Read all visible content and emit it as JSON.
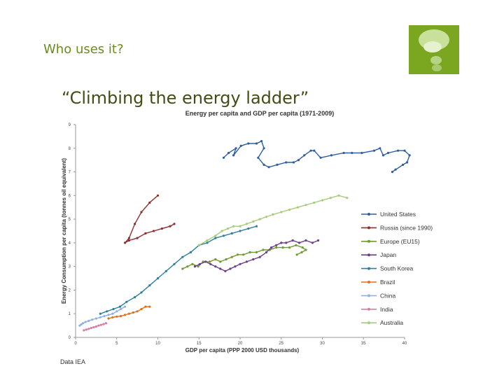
{
  "slide": {
    "title": "Who uses it?",
    "headline": "“Climbing the energy ladder”",
    "source": "Data  IEA"
  },
  "logo": {
    "icon": "thought-bubble-icon",
    "color": "#7aa71f"
  },
  "chart_data": {
    "type": "line",
    "title": "Energy per capita and GDP per capita (1971-2009)",
    "xlabel": "GDP per capita (PPP 2000 USD thousands)",
    "ylabel": "Energy Consumption per capita (tonnes oil equivalent)",
    "xlim": [
      0,
      40
    ],
    "ylim": [
      0,
      9
    ],
    "xticks": [
      0,
      5,
      10,
      15,
      20,
      25,
      30,
      35,
      40
    ],
    "yticks": [
      0,
      1,
      2,
      3,
      4,
      5,
      6,
      7,
      8,
      9
    ],
    "grid": false,
    "legend_position": "right",
    "series": [
      {
        "name": "United States",
        "color": "#2f5f9e",
        "points": [
          [
            18.0,
            7.6
          ],
          [
            18.6,
            7.8
          ],
          [
            19.5,
            8.0
          ],
          [
            19.2,
            7.7
          ],
          [
            20.1,
            8.1
          ],
          [
            21.0,
            8.2
          ],
          [
            22.0,
            8.2
          ],
          [
            22.6,
            8.3
          ],
          [
            22.9,
            8.0
          ],
          [
            22.2,
            7.6
          ],
          [
            22.9,
            7.3
          ],
          [
            23.5,
            7.2
          ],
          [
            24.5,
            7.3
          ],
          [
            25.6,
            7.4
          ],
          [
            26.5,
            7.4
          ],
          [
            27.1,
            7.5
          ],
          [
            27.8,
            7.7
          ],
          [
            28.6,
            7.9
          ],
          [
            29.0,
            7.9
          ],
          [
            29.8,
            7.6
          ],
          [
            31.1,
            7.7
          ],
          [
            32.6,
            7.8
          ],
          [
            33.6,
            7.8
          ],
          [
            34.8,
            7.8
          ],
          [
            36.3,
            7.9
          ],
          [
            37.0,
            8.0
          ],
          [
            37.4,
            7.7
          ],
          [
            38.0,
            7.8
          ],
          [
            39.2,
            7.9
          ],
          [
            40.0,
            7.9
          ],
          [
            40.6,
            7.7
          ],
          [
            40.3,
            7.4
          ],
          [
            39.8,
            7.3
          ],
          [
            38.5,
            7.0
          ],
          [
            38.9,
            7.1
          ]
        ]
      },
      {
        "name": "Russia (since 1990)",
        "color": "#8e2f2f",
        "points": [
          [
            10.0,
            6.0
          ],
          [
            9.0,
            5.7
          ],
          [
            8.0,
            5.3
          ],
          [
            7.2,
            4.8
          ],
          [
            6.5,
            4.2
          ],
          [
            6.0,
            4.0
          ],
          [
            6.5,
            4.1
          ],
          [
            7.5,
            4.2
          ],
          [
            8.5,
            4.4
          ],
          [
            9.5,
            4.5
          ],
          [
            10.5,
            4.6
          ],
          [
            11.5,
            4.7
          ],
          [
            12.0,
            4.8
          ]
        ]
      },
      {
        "name": "Europe (EU15)",
        "color": "#6e9a2e",
        "points": [
          [
            13.0,
            2.9
          ],
          [
            13.6,
            3.0
          ],
          [
            14.2,
            3.1
          ],
          [
            14.9,
            3.0
          ],
          [
            15.5,
            3.2
          ],
          [
            16.3,
            3.2
          ],
          [
            17.0,
            3.3
          ],
          [
            17.6,
            3.2
          ],
          [
            18.3,
            3.3
          ],
          [
            19.0,
            3.4
          ],
          [
            19.7,
            3.5
          ],
          [
            20.4,
            3.5
          ],
          [
            21.2,
            3.6
          ],
          [
            22.0,
            3.6
          ],
          [
            22.8,
            3.7
          ],
          [
            23.6,
            3.7
          ],
          [
            24.4,
            3.8
          ],
          [
            25.2,
            3.8
          ],
          [
            26.0,
            3.8
          ],
          [
            26.8,
            3.9
          ],
          [
            27.6,
            3.8
          ],
          [
            28.0,
            3.7
          ],
          [
            27.5,
            3.6
          ],
          [
            26.9,
            3.5
          ]
        ]
      },
      {
        "name": "Japan",
        "color": "#6a3f8c",
        "points": [
          [
            14.5,
            3.0
          ],
          [
            15.1,
            3.1
          ],
          [
            15.8,
            3.2
          ],
          [
            16.4,
            3.1
          ],
          [
            17.0,
            3.0
          ],
          [
            17.6,
            2.9
          ],
          [
            18.2,
            2.8
          ],
          [
            18.8,
            2.9
          ],
          [
            19.4,
            3.0
          ],
          [
            20.0,
            3.1
          ],
          [
            20.8,
            3.2
          ],
          [
            21.6,
            3.3
          ],
          [
            22.4,
            3.4
          ],
          [
            23.2,
            3.6
          ],
          [
            23.8,
            3.8
          ],
          [
            24.4,
            3.9
          ],
          [
            25.0,
            4.0
          ],
          [
            25.6,
            4.0
          ],
          [
            26.4,
            4.1
          ],
          [
            27.2,
            4.0
          ],
          [
            28.0,
            4.1
          ],
          [
            28.8,
            4.0
          ],
          [
            29.5,
            4.1
          ]
        ]
      },
      {
        "name": "South Korea",
        "color": "#2f7f9a",
        "points": [
          [
            3.0,
            1.0
          ],
          [
            3.8,
            1.1
          ],
          [
            4.6,
            1.2
          ],
          [
            5.4,
            1.3
          ],
          [
            6.2,
            1.5
          ],
          [
            7.2,
            1.7
          ],
          [
            8.0,
            1.9
          ],
          [
            9.0,
            2.2
          ],
          [
            10.0,
            2.5
          ],
          [
            11.0,
            2.8
          ],
          [
            12.0,
            3.1
          ],
          [
            13.0,
            3.4
          ],
          [
            14.0,
            3.6
          ],
          [
            15.0,
            3.9
          ],
          [
            16.0,
            4.0
          ],
          [
            17.0,
            4.2
          ],
          [
            18.0,
            4.3
          ],
          [
            19.0,
            4.4
          ],
          [
            20.0,
            4.5
          ],
          [
            21.0,
            4.6
          ],
          [
            22.0,
            4.7
          ]
        ]
      },
      {
        "name": "Brazil",
        "color": "#e1701e",
        "points": [
          [
            4.0,
            0.8
          ],
          [
            4.5,
            0.85
          ],
          [
            5.0,
            0.88
          ],
          [
            5.5,
            0.9
          ],
          [
            6.0,
            0.95
          ],
          [
            6.5,
            1.0
          ],
          [
            7.0,
            1.05
          ],
          [
            7.5,
            1.1
          ],
          [
            8.0,
            1.2
          ],
          [
            8.5,
            1.3
          ],
          [
            9.0,
            1.3
          ]
        ]
      },
      {
        "name": "China",
        "color": "#8fb2de",
        "points": [
          [
            0.5,
            0.5
          ],
          [
            0.7,
            0.55
          ],
          [
            0.9,
            0.6
          ],
          [
            1.2,
            0.65
          ],
          [
            1.6,
            0.7
          ],
          [
            2.0,
            0.75
          ],
          [
            2.5,
            0.8
          ],
          [
            3.0,
            0.85
          ],
          [
            3.5,
            0.9
          ],
          [
            4.0,
            0.95
          ],
          [
            4.5,
            1.0
          ],
          [
            5.0,
            1.1
          ],
          [
            5.5,
            1.2
          ],
          [
            6.0,
            1.3
          ]
        ]
      },
      {
        "name": "India",
        "color": "#d47fa6",
        "points": [
          [
            1.0,
            0.3
          ],
          [
            1.3,
            0.33
          ],
          [
            1.6,
            0.36
          ],
          [
            1.9,
            0.4
          ],
          [
            2.2,
            0.43
          ],
          [
            2.5,
            0.46
          ],
          [
            2.8,
            0.5
          ],
          [
            3.1,
            0.53
          ],
          [
            3.4,
            0.56
          ],
          [
            3.7,
            0.6
          ]
        ]
      },
      {
        "name": "Australia",
        "color": "#a3cd7a",
        "points": [
          [
            15.0,
            3.9
          ],
          [
            16.0,
            4.1
          ],
          [
            17.0,
            4.3
          ],
          [
            17.8,
            4.5
          ],
          [
            18.5,
            4.6
          ],
          [
            19.2,
            4.7
          ],
          [
            20.0,
            4.7
          ],
          [
            20.8,
            4.8
          ],
          [
            21.6,
            4.9
          ],
          [
            22.4,
            5.0
          ],
          [
            23.2,
            5.1
          ],
          [
            24.0,
            5.2
          ],
          [
            25.0,
            5.3
          ],
          [
            26.0,
            5.4
          ],
          [
            27.0,
            5.5
          ],
          [
            28.0,
            5.6
          ],
          [
            29.0,
            5.7
          ],
          [
            30.0,
            5.8
          ],
          [
            31.0,
            5.9
          ],
          [
            32.0,
            6.0
          ],
          [
            33.0,
            5.9
          ]
        ]
      }
    ]
  }
}
